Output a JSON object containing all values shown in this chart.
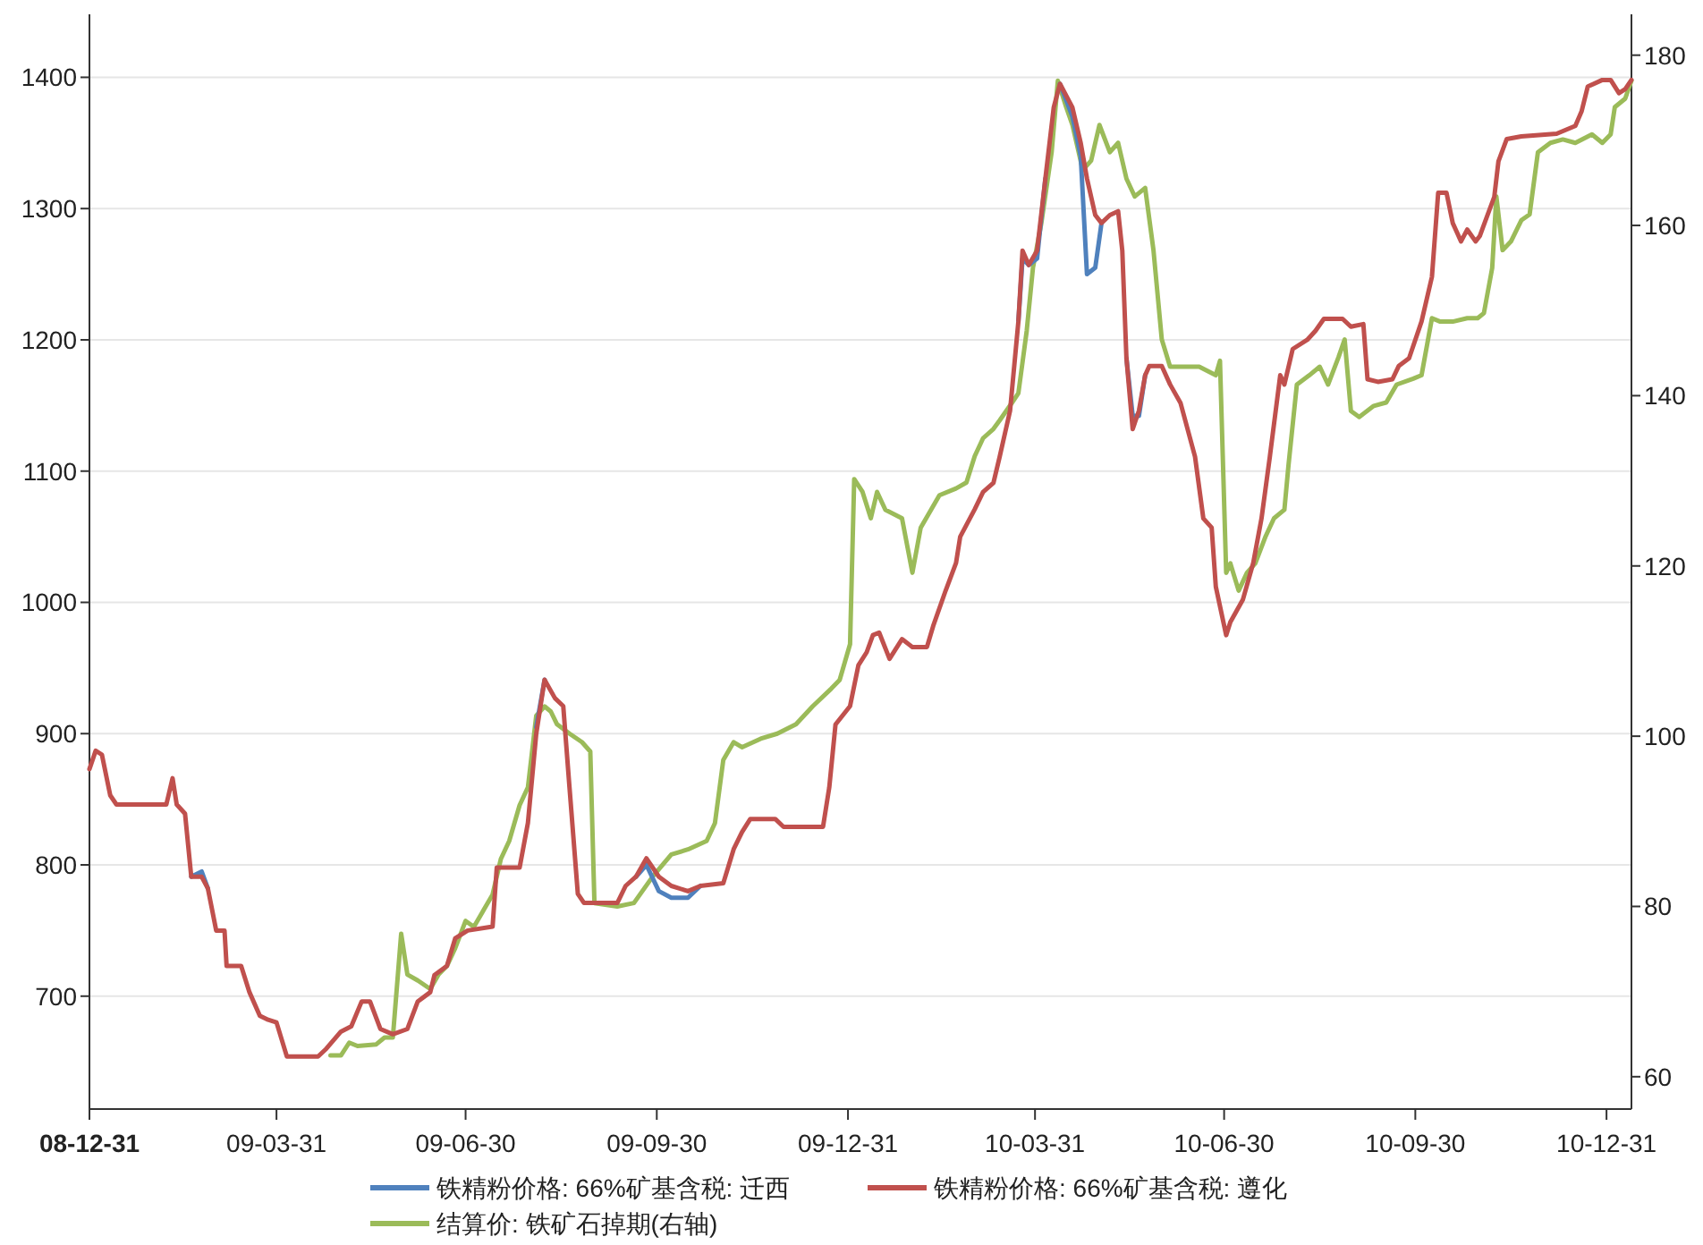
{
  "chart_data": {
    "type": "line",
    "grid": "y",
    "legend": "bottom",
    "xlim": [
      "2008-12-31",
      "2011-01-12"
    ],
    "xticks": [
      {
        "value": "2008-12-31",
        "label": "08-12-31"
      },
      {
        "value": "2009-03-31",
        "label": "09-03-31"
      },
      {
        "value": "2009-06-30",
        "label": "09-06-30"
      },
      {
        "value": "2009-09-30",
        "label": "09-09-30"
      },
      {
        "value": "2009-12-31",
        "label": "09-12-31"
      },
      {
        "value": "2010-03-31",
        "label": "10-03-31"
      },
      {
        "value": "2010-06-30",
        "label": "10-06-30"
      },
      {
        "value": "2010-09-30",
        "label": "10-09-30"
      },
      {
        "value": "2010-12-31",
        "label": "10-12-31"
      }
    ],
    "ylim": [
      614,
      1448
    ],
    "yticks": [
      700,
      800,
      900,
      1000,
      1100,
      1200,
      1300,
      1400
    ],
    "y2lim": [
      56.2,
      184.8
    ],
    "y2ticks": [
      60,
      80,
      100,
      120,
      140,
      160,
      180
    ],
    "x": [
      "2008-12-31",
      "2009-01-03",
      "2009-01-06",
      "2009-01-10",
      "2009-01-13",
      "2009-02-06",
      "2009-02-09",
      "2009-02-11",
      "2009-02-15",
      "2009-02-18",
      "2009-02-23",
      "2009-02-26",
      "2009-03-02",
      "2009-03-06",
      "2009-03-07",
      "2009-03-14",
      "2009-03-18",
      "2009-03-23",
      "2009-03-27",
      "2009-03-31",
      "2009-04-05",
      "2009-04-20",
      "2009-04-24",
      "2009-05-01",
      "2009-05-06",
      "2009-05-11",
      "2009-05-15",
      "2009-05-20",
      "2009-05-26",
      "2009-06-02",
      "2009-06-07",
      "2009-06-13",
      "2009-06-15",
      "2009-06-21",
      "2009-06-25",
      "2009-07-01",
      "2009-07-13",
      "2009-07-15",
      "2009-07-26",
      "2009-07-30",
      "2009-08-03",
      "2009-08-07",
      "2009-08-12",
      "2009-08-16",
      "2009-08-19",
      "2009-08-23",
      "2009-08-26",
      "2009-09-11",
      "2009-09-15",
      "2009-09-20",
      "2009-09-25",
      "2009-10-01",
      "2009-10-07",
      "2009-10-15",
      "2009-10-21",
      "2009-11-01",
      "2009-11-06",
      "2009-11-10",
      "2009-11-14",
      "2009-11-26",
      "2009-11-30",
      "2009-12-19",
      "2009-12-22",
      "2009-12-25",
      "2010-01-01",
      "2010-01-05",
      "2010-01-09",
      "2010-01-12",
      "2010-01-15",
      "2010-01-20",
      "2010-01-26",
      "2010-01-31",
      "2010-02-07",
      "2010-02-10",
      "2010-02-16",
      "2010-02-21",
      "2010-02-23",
      "2010-03-02",
      "2010-03-06",
      "2010-03-11",
      "2010-03-14",
      "2010-03-19",
      "2010-03-23",
      "2010-03-25",
      "2010-03-28",
      "2010-04-01",
      "2010-04-05",
      "2010-04-09",
      "2010-04-12",
      "2010-04-18",
      "2010-04-22",
      "2010-04-25",
      "2010-04-29",
      "2010-05-02",
      "2010-05-06",
      "2010-05-10",
      "2010-05-12",
      "2010-05-14",
      "2010-05-17",
      "2010-05-20",
      "2010-05-23",
      "2010-05-25",
      "2010-05-31",
      "2010-06-04",
      "2010-06-09",
      "2010-06-16",
      "2010-06-20",
      "2010-06-24",
      "2010-06-26",
      "2010-07-01",
      "2010-07-03",
      "2010-07-09",
      "2010-07-14",
      "2010-07-18",
      "2010-07-22",
      "2010-07-27",
      "2010-07-29",
      "2010-08-02",
      "2010-08-09",
      "2010-08-13",
      "2010-08-17",
      "2010-08-26",
      "2010-08-30",
      "2010-09-05",
      "2010-09-07",
      "2010-09-12",
      "2010-09-19",
      "2010-09-22",
      "2010-09-27",
      "2010-10-03",
      "2010-10-08",
      "2010-10-11",
      "2010-10-15",
      "2010-10-18",
      "2010-10-22",
      "2010-10-25",
      "2010-10-29",
      "2010-10-31",
      "2010-11-07",
      "2010-11-09",
      "2010-11-13",
      "2010-11-20",
      "2010-12-07",
      "2010-12-16",
      "2010-12-19",
      "2010-12-22",
      "2010-12-29",
      "2011-01-02",
      "2011-01-06",
      "2011-01-09",
      "2011-01-12"
    ],
    "series": [
      {
        "name": "铁精粉价格: 66%矿基含税: 迁西",
        "color": "#4f81bd",
        "values": [
          null,
          null,
          null,
          null,
          null,
          null,
          null,
          null,
          null,
          791,
          795,
          782,
          null,
          null,
          null,
          null,
          null,
          null,
          null,
          null,
          null,
          null,
          null,
          null,
          null,
          null,
          null,
          null,
          null,
          null,
          null,
          null,
          null,
          null,
          null,
          null,
          null,
          null,
          null,
          null,
          905,
          941,
          null,
          null,
          null,
          null,
          null,
          null,
          null,
          791,
          800,
          780,
          775,
          775,
          784,
          null,
          null,
          null,
          null,
          null,
          null,
          null,
          null,
          null,
          null,
          null,
          null,
          null,
          null,
          null,
          null,
          null,
          null,
          null,
          null,
          null,
          null,
          null,
          null,
          null,
          null,
          null,
          1214,
          1262,
          1257,
          1262,
          1323,
          null,
          1395,
          1370,
          1340,
          1250,
          1255,
          1289,
          null,
          null,
          null,
          1186,
          1142,
          1142,
          1173,
          null,
          null,
          null,
          null,
          null,
          null,
          null,
          null,
          null,
          null,
          null,
          null,
          null,
          null,
          null,
          null,
          null,
          null,
          null,
          null,
          null,
          null,
          null,
          null,
          null,
          null,
          null,
          null,
          null,
          null,
          null,
          null,
          null,
          null,
          null,
          null,
          null,
          null,
          null,
          null,
          null,
          null,
          null,
          null,
          null,
          null,
          null,
          null,
          null,
          null
        ]
      },
      {
        "name": "铁精粉价格: 66%矿基含税: 遵化",
        "color": "#c0504d",
        "values": [
          873,
          887,
          884,
          853,
          846,
          846,
          866,
          846,
          839,
          791,
          791,
          782,
          750,
          750,
          723,
          723,
          703,
          685,
          682,
          680,
          654,
          654,
          660,
          673,
          677,
          696,
          696,
          675,
          671,
          675,
          696,
          703,
          716,
          723,
          744,
          750,
          753,
          798,
          798,
          832,
          900,
          941,
          927,
          921,
          859,
          778,
          771,
          771,
          784,
          791,
          805,
          791,
          784,
          780,
          784,
          786,
          812,
          825,
          835,
          835,
          829,
          829,
          859,
          907,
          921,
          952,
          962,
          975,
          977,
          957,
          972,
          966,
          966,
          982,
          1009,
          1030,
          1050,
          1071,
          1084,
          1091,
          1111,
          1146,
          1214,
          1268,
          1257,
          1268,
          1323,
          1377,
          1395,
          1377,
          1350,
          1323,
          1295,
          1289,
          1295,
          1298,
          1268,
          1186,
          1132,
          1146,
          1173,
          1180,
          1180,
          1166,
          1152,
          1111,
          1064,
          1057,
          1012,
          975,
          985,
          1002,
          1030,
          1064,
          1111,
          1173,
          1166,
          1193,
          1200,
          1207,
          1216,
          1216,
          1210,
          1212,
          1170,
          1168,
          1170,
          1180,
          1186,
          1214,
          1248,
          1312,
          1312,
          1289,
          1275,
          1284,
          1275,
          1279,
          1309,
          1336,
          1353,
          1355,
          1357,
          1363,
          1374,
          1393,
          1398,
          1398,
          1388,
          1391,
          1398
        ]
      },
      {
        "name": "结算价: 铁矿石掉期(右轴)",
        "color": "#9bbb59",
        "axis": "y2",
        "x": [
          "2009-04-26",
          "2009-05-01",
          "2009-05-05",
          "2009-05-09",
          "2009-05-18",
          "2009-05-22",
          "2009-05-26",
          "2009-05-30",
          "2009-06-02",
          "2009-06-07",
          "2009-06-13",
          "2009-06-17",
          "2009-06-21",
          "2009-06-25",
          "2009-06-30",
          "2009-07-04",
          "2009-07-08",
          "2009-07-13",
          "2009-07-17",
          "2009-07-21",
          "2009-07-26",
          "2009-07-30",
          "2009-08-03",
          "2009-08-07",
          "2009-08-10",
          "2009-08-13",
          "2009-08-19",
          "2009-08-25",
          "2009-08-29",
          "2009-08-31",
          "2009-09-11",
          "2009-09-19",
          "2009-09-28",
          "2009-10-07",
          "2009-10-15",
          "2009-10-24",
          "2009-10-28",
          "2009-11-01",
          "2009-11-06",
          "2009-11-10",
          "2009-11-19",
          "2009-11-27",
          "2009-12-06",
          "2009-12-14",
          "2009-12-23",
          "2009-12-27",
          "2010-01-01",
          "2010-01-03",
          "2010-01-07",
          "2010-01-11",
          "2010-01-14",
          "2010-01-18",
          "2010-01-26",
          "2010-01-31",
          "2010-02-04",
          "2010-02-13",
          "2010-02-21",
          "2010-02-26",
          "2010-03-02",
          "2010-03-06",
          "2010-03-11",
          "2010-03-14",
          "2010-03-20",
          "2010-03-23",
          "2010-03-27",
          "2010-03-30",
          "2010-04-03",
          "2010-04-08",
          "2010-04-11",
          "2010-04-15",
          "2010-04-18",
          "2010-04-23",
          "2010-04-27",
          "2010-05-01",
          "2010-05-06",
          "2010-05-10",
          "2010-05-14",
          "2010-05-18",
          "2010-05-23",
          "2010-05-27",
          "2010-05-31",
          "2010-06-04",
          "2010-06-09",
          "2010-06-18",
          "2010-06-26",
          "2010-06-28",
          "2010-07-01",
          "2010-07-03",
          "2010-07-07",
          "2010-07-11",
          "2010-07-15",
          "2010-07-20",
          "2010-07-24",
          "2010-07-29",
          "2010-07-31",
          "2010-08-04",
          "2010-08-10",
          "2010-08-15",
          "2010-08-19",
          "2010-08-24",
          "2010-08-27",
          "2010-08-30",
          "2010-09-03",
          "2010-09-10",
          "2010-09-16",
          "2010-09-21",
          "2010-09-29",
          "2010-10-03",
          "2010-10-08",
          "2010-10-12",
          "2010-10-18",
          "2010-10-25",
          "2010-10-30",
          "2010-11-02",
          "2010-11-06",
          "2010-11-08",
          "2010-11-11",
          "2010-11-15",
          "2010-11-20",
          "2010-11-24",
          "2010-11-28",
          "2010-12-04",
          "2010-12-10",
          "2010-12-16",
          "2010-12-24",
          "2010-12-29",
          "2011-01-02",
          "2011-01-04",
          "2011-01-09",
          "2011-01-12"
        ],
        "values": [
          62.5,
          62.5,
          64.0,
          63.6,
          63.8,
          64.6,
          64.6,
          76.8,
          72.0,
          71.3,
          70.3,
          72.0,
          73.0,
          75.1,
          78.3,
          77.6,
          79.3,
          81.4,
          85.6,
          87.7,
          91.9,
          94.0,
          102.4,
          103.5,
          102.9,
          101.4,
          100.3,
          99.3,
          98.2,
          80.4,
          80.0,
          80.4,
          83.5,
          86.1,
          86.7,
          87.7,
          89.8,
          97.2,
          99.3,
          98.7,
          99.7,
          100.3,
          101.4,
          103.5,
          105.6,
          106.6,
          110.8,
          130.2,
          128.7,
          125.6,
          128.7,
          126.6,
          125.6,
          119.2,
          124.5,
          128.3,
          129.1,
          129.8,
          132.9,
          135.0,
          136.1,
          137.1,
          139.2,
          140.3,
          147.6,
          155.0,
          160.2,
          168.6,
          177.0,
          173.9,
          171.8,
          166.5,
          167.6,
          171.8,
          168.6,
          169.7,
          165.5,
          163.4,
          164.4,
          157.1,
          146.6,
          143.4,
          143.4,
          143.4,
          142.4,
          144.1,
          119.2,
          120.3,
          117.1,
          119.2,
          120.3,
          123.5,
          125.6,
          126.6,
          131.9,
          141.3,
          142.4,
          143.4,
          141.3,
          144.5,
          146.6,
          138.2,
          137.5,
          138.8,
          139.2,
          141.3,
          142.0,
          142.4,
          149.1,
          148.7,
          148.7,
          149.1,
          149.1,
          149.7,
          155.0,
          163.4,
          157.1,
          158.1,
          160.6,
          161.3,
          168.6,
          169.7,
          170.1,
          169.7,
          170.7,
          169.7,
          170.7,
          173.9,
          174.9,
          177.0
        ]
      }
    ]
  }
}
